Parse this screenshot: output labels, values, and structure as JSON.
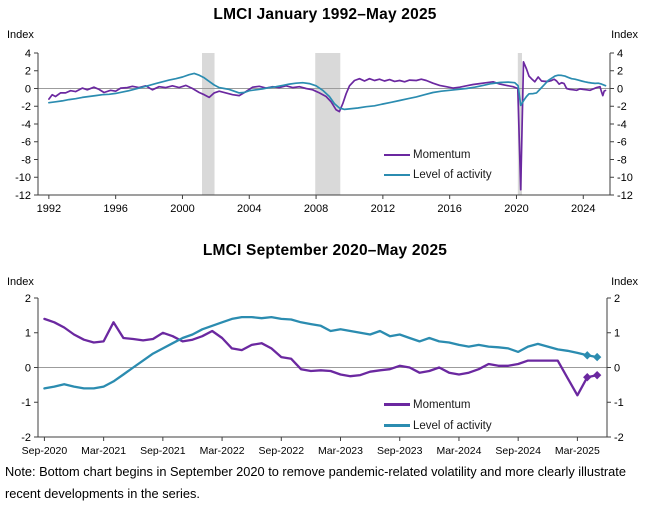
{
  "note": "Note: Bottom chart begins in September 2020 to remove pandemic-related volatility and more clearly illustrate recent developments in the series.",
  "chart_data": [
    {
      "type": "line",
      "title": "LMCI January 1992–May 2025",
      "ylabel_left": "Index",
      "ylabel_right": "Index",
      "ylim": [
        -12,
        4
      ],
      "yticks": [
        4,
        2,
        0,
        -2,
        -4,
        -6,
        -8,
        -10,
        -12
      ],
      "xlim": [
        1991.35,
        2025.6
      ],
      "xticks": [
        {
          "v": 1992,
          "label": "1992"
        },
        {
          "v": 1996,
          "label": "1996"
        },
        {
          "v": 2000,
          "label": "2000"
        },
        {
          "v": 2004,
          "label": "2004"
        },
        {
          "v": 2008,
          "label": "2008"
        },
        {
          "v": 2012,
          "label": "2012"
        },
        {
          "v": 2016,
          "label": "2016"
        },
        {
          "v": 2020,
          "label": "2020"
        },
        {
          "v": 2024,
          "label": "2024"
        }
      ],
      "grid": "zero-line-only",
      "legend_position": "inside-right",
      "band_color": "#d9d9d9",
      "bands": [
        [
          2001.17,
          2001.92
        ],
        [
          2007.95,
          2009.45
        ],
        [
          2020.08,
          2020.33
        ]
      ],
      "series": [
        {
          "name": "Momentum",
          "color": "#6b28a0",
          "points": [
            [
              1992.0,
              -1.2
            ],
            [
              1992.2,
              -0.7
            ],
            [
              1992.4,
              -0.9
            ],
            [
              1992.7,
              -0.5
            ],
            [
              1993.0,
              -0.5
            ],
            [
              1993.3,
              -0.25
            ],
            [
              1993.6,
              -0.35
            ],
            [
              1994.0,
              0.05
            ],
            [
              1994.3,
              -0.15
            ],
            [
              1994.7,
              0.15
            ],
            [
              1995.0,
              -0.1
            ],
            [
              1995.3,
              -0.45
            ],
            [
              1995.7,
              -0.2
            ],
            [
              1996.0,
              -0.3
            ],
            [
              1996.3,
              0.05
            ],
            [
              1996.7,
              0.1
            ],
            [
              1997.0,
              0.25
            ],
            [
              1997.4,
              0.1
            ],
            [
              1997.8,
              0.3
            ],
            [
              1998.2,
              -0.15
            ],
            [
              1998.6,
              0.2
            ],
            [
              1999.0,
              0.1
            ],
            [
              1999.4,
              0.3
            ],
            [
              1999.8,
              0.1
            ],
            [
              2000.2,
              0.35
            ],
            [
              2000.6,
              0.0
            ],
            [
              2001.0,
              -0.45
            ],
            [
              2001.3,
              -0.7
            ],
            [
              2001.6,
              -1.0
            ],
            [
              2001.9,
              -0.5
            ],
            [
              2002.2,
              -0.3
            ],
            [
              2002.6,
              -0.5
            ],
            [
              2003.0,
              -0.7
            ],
            [
              2003.4,
              -0.8
            ],
            [
              2003.8,
              -0.35
            ],
            [
              2004.2,
              0.15
            ],
            [
              2004.6,
              0.25
            ],
            [
              2005.0,
              0.05
            ],
            [
              2005.4,
              0.2
            ],
            [
              2005.8,
              0.1
            ],
            [
              2006.2,
              0.3
            ],
            [
              2006.6,
              0.1
            ],
            [
              2007.0,
              0.2
            ],
            [
              2007.4,
              0.0
            ],
            [
              2007.8,
              -0.15
            ],
            [
              2008.2,
              -0.5
            ],
            [
              2008.6,
              -0.9
            ],
            [
              2008.9,
              -1.5
            ],
            [
              2009.2,
              -2.4
            ],
            [
              2009.4,
              -2.6
            ],
            [
              2009.6,
              -1.7
            ],
            [
              2009.8,
              -0.6
            ],
            [
              2010.0,
              0.3
            ],
            [
              2010.3,
              0.9
            ],
            [
              2010.6,
              1.1
            ],
            [
              2010.9,
              0.85
            ],
            [
              2011.2,
              1.1
            ],
            [
              2011.5,
              0.9
            ],
            [
              2011.8,
              1.05
            ],
            [
              2012.1,
              0.85
            ],
            [
              2012.4,
              1.0
            ],
            [
              2012.7,
              0.8
            ],
            [
              2013.0,
              0.9
            ],
            [
              2013.3,
              0.75
            ],
            [
              2013.6,
              0.95
            ],
            [
              2014.0,
              0.9
            ],
            [
              2014.3,
              1.05
            ],
            [
              2014.6,
              0.9
            ],
            [
              2015.0,
              0.6
            ],
            [
              2015.4,
              0.35
            ],
            [
              2015.8,
              0.2
            ],
            [
              2016.2,
              0.05
            ],
            [
              2016.6,
              0.15
            ],
            [
              2017.0,
              0.3
            ],
            [
              2017.4,
              0.45
            ],
            [
              2017.8,
              0.55
            ],
            [
              2018.2,
              0.65
            ],
            [
              2018.6,
              0.75
            ],
            [
              2019.0,
              0.5
            ],
            [
              2019.4,
              0.35
            ],
            [
              2019.8,
              0.2
            ],
            [
              2020.08,
              0.0
            ],
            [
              2020.25,
              -11.4
            ],
            [
              2020.42,
              3.0
            ],
            [
              2020.6,
              2.2
            ],
            [
              2020.75,
              1.4
            ],
            [
              2020.9,
              1.1
            ],
            [
              2021.1,
              0.75
            ],
            [
              2021.3,
              1.3
            ],
            [
              2021.5,
              0.85
            ],
            [
              2021.7,
              0.8
            ],
            [
              2021.9,
              0.8
            ],
            [
              2022.1,
              0.9
            ],
            [
              2022.25,
              1.05
            ],
            [
              2022.4,
              0.85
            ],
            [
              2022.55,
              0.5
            ],
            [
              2022.7,
              0.65
            ],
            [
              2022.85,
              0.55
            ],
            [
              2023.0,
              0.0
            ],
            [
              2023.2,
              -0.1
            ],
            [
              2023.4,
              -0.15
            ],
            [
              2023.6,
              -0.2
            ],
            [
              2023.8,
              -0.05
            ],
            [
              2024.0,
              -0.1
            ],
            [
              2024.2,
              -0.15
            ],
            [
              2024.4,
              -0.2
            ],
            [
              2024.6,
              -0.05
            ],
            [
              2024.8,
              0.1
            ],
            [
              2025.0,
              0.2
            ],
            [
              2025.08,
              -0.3
            ],
            [
              2025.17,
              -0.8
            ],
            [
              2025.25,
              -0.28
            ],
            [
              2025.33,
              -0.22
            ]
          ]
        },
        {
          "name": "Level of activity",
          "color": "#2b8cb0",
          "points": [
            [
              1992.0,
              -1.6
            ],
            [
              1992.4,
              -1.5
            ],
            [
              1992.8,
              -1.4
            ],
            [
              1993.2,
              -1.25
            ],
            [
              1993.6,
              -1.15
            ],
            [
              1994.0,
              -1.0
            ],
            [
              1994.4,
              -0.9
            ],
            [
              1994.8,
              -0.8
            ],
            [
              1995.2,
              -0.7
            ],
            [
              1995.6,
              -0.65
            ],
            [
              1996.0,
              -0.55
            ],
            [
              1996.4,
              -0.4
            ],
            [
              1996.8,
              -0.25
            ],
            [
              1997.2,
              -0.05
            ],
            [
              1997.6,
              0.15
            ],
            [
              1998.0,
              0.35
            ],
            [
              1998.4,
              0.55
            ],
            [
              1998.8,
              0.75
            ],
            [
              1999.2,
              0.95
            ],
            [
              1999.6,
              1.1
            ],
            [
              2000.0,
              1.3
            ],
            [
              2000.4,
              1.55
            ],
            [
              2000.7,
              1.7
            ],
            [
              2001.0,
              1.5
            ],
            [
              2001.3,
              1.2
            ],
            [
              2001.6,
              0.8
            ],
            [
              2001.9,
              0.4
            ],
            [
              2002.2,
              0.1
            ],
            [
              2002.5,
              0.0
            ],
            [
              2002.8,
              -0.1
            ],
            [
              2003.1,
              -0.3
            ],
            [
              2003.4,
              -0.5
            ],
            [
              2003.7,
              -0.45
            ],
            [
              2004.0,
              -0.25
            ],
            [
              2004.4,
              -0.15
            ],
            [
              2004.8,
              -0.05
            ],
            [
              2005.2,
              0.1
            ],
            [
              2005.6,
              0.2
            ],
            [
              2006.0,
              0.35
            ],
            [
              2006.4,
              0.5
            ],
            [
              2006.8,
              0.6
            ],
            [
              2007.2,
              0.65
            ],
            [
              2007.6,
              0.55
            ],
            [
              2008.0,
              0.3
            ],
            [
              2008.4,
              -0.2
            ],
            [
              2008.8,
              -0.9
            ],
            [
              2009.1,
              -1.7
            ],
            [
              2009.4,
              -2.2
            ],
            [
              2009.7,
              -2.35
            ],
            [
              2010.0,
              -2.3
            ],
            [
              2010.5,
              -2.2
            ],
            [
              2011.0,
              -2.05
            ],
            [
              2011.5,
              -1.95
            ],
            [
              2012.0,
              -1.75
            ],
            [
              2012.5,
              -1.55
            ],
            [
              2013.0,
              -1.35
            ],
            [
              2013.5,
              -1.15
            ],
            [
              2014.0,
              -0.95
            ],
            [
              2014.5,
              -0.7
            ],
            [
              2015.0,
              -0.45
            ],
            [
              2015.5,
              -0.3
            ],
            [
              2016.0,
              -0.2
            ],
            [
              2016.5,
              -0.1
            ],
            [
              2017.0,
              0.0
            ],
            [
              2017.5,
              0.15
            ],
            [
              2018.0,
              0.35
            ],
            [
              2018.5,
              0.55
            ],
            [
              2019.0,
              0.68
            ],
            [
              2019.5,
              0.72
            ],
            [
              2019.9,
              0.65
            ],
            [
              2020.1,
              0.3
            ],
            [
              2020.25,
              -1.9
            ],
            [
              2020.45,
              -1.3
            ],
            [
              2020.6,
              -0.9
            ],
            [
              2020.75,
              -0.6
            ],
            [
              2021.0,
              -0.58
            ],
            [
              2021.2,
              -0.5
            ],
            [
              2021.45,
              0.0
            ],
            [
              2021.7,
              0.5
            ],
            [
              2021.9,
              0.9
            ],
            [
              2022.1,
              1.15
            ],
            [
              2022.3,
              1.4
            ],
            [
              2022.5,
              1.5
            ],
            [
              2022.7,
              1.48
            ],
            [
              2022.9,
              1.4
            ],
            [
              2023.1,
              1.25
            ],
            [
              2023.3,
              1.1
            ],
            [
              2023.5,
              1.05
            ],
            [
              2023.7,
              0.95
            ],
            [
              2023.9,
              0.85
            ],
            [
              2024.1,
              0.75
            ],
            [
              2024.3,
              0.68
            ],
            [
              2024.5,
              0.62
            ],
            [
              2024.7,
              0.58
            ],
            [
              2024.9,
              0.6
            ],
            [
              2025.1,
              0.5
            ],
            [
              2025.33,
              0.32
            ]
          ]
        }
      ]
    },
    {
      "type": "line",
      "title": "LMCI September 2020–May 2025",
      "ylabel_left": "Index",
      "ylabel_right": "Index",
      "ylim": [
        -2,
        2
      ],
      "yticks": [
        2,
        1,
        0,
        -1,
        -2
      ],
      "xlim": [
        -0.65,
        57.0
      ],
      "xticks": [
        {
          "v": 0,
          "label": "Sep-2020"
        },
        {
          "v": 6,
          "label": "Mar-2021"
        },
        {
          "v": 12,
          "label": "Sep-2021"
        },
        {
          "v": 18,
          "label": "Mar-2022"
        },
        {
          "v": 24,
          "label": "Sep-2022"
        },
        {
          "v": 30,
          "label": "Mar-2023"
        },
        {
          "v": 36,
          "label": "Sep-2023"
        },
        {
          "v": 42,
          "label": "Mar-2024"
        },
        {
          "v": 48,
          "label": "Sep-2024"
        },
        {
          "v": 54,
          "label": "Mar-2025"
        }
      ],
      "grid": "zero-line-only",
      "legend_position": "inside-right",
      "x_unit": "month-index-from-Sep-2020",
      "series": [
        {
          "name": "Momentum",
          "color": "#6b28a0",
          "diamond_last": 2,
          "values": [
            1.4,
            1.3,
            1.15,
            0.95,
            0.8,
            0.72,
            0.75,
            1.3,
            0.85,
            0.82,
            0.78,
            0.82,
            1.0,
            0.9,
            0.75,
            0.8,
            0.9,
            1.05,
            0.85,
            0.55,
            0.5,
            0.65,
            0.7,
            0.55,
            0.3,
            0.25,
            -0.05,
            -0.1,
            -0.08,
            -0.1,
            -0.2,
            -0.25,
            -0.22,
            -0.12,
            -0.08,
            -0.05,
            0.05,
            0.0,
            -0.15,
            -0.1,
            0.0,
            -0.15,
            -0.2,
            -0.15,
            -0.05,
            0.1,
            0.05,
            0.05,
            0.1,
            0.2,
            0.2,
            0.2,
            0.2,
            -0.3,
            -0.8,
            -0.28,
            -0.22
          ]
        },
        {
          "name": "Level of activity",
          "color": "#2b8cb0",
          "diamond_last": 2,
          "values": [
            -0.6,
            -0.55,
            -0.48,
            -0.55,
            -0.6,
            -0.6,
            -0.55,
            -0.4,
            -0.2,
            0.0,
            0.2,
            0.4,
            0.55,
            0.7,
            0.85,
            0.95,
            1.1,
            1.2,
            1.3,
            1.4,
            1.45,
            1.45,
            1.42,
            1.45,
            1.4,
            1.38,
            1.3,
            1.25,
            1.2,
            1.05,
            1.1,
            1.05,
            1.0,
            0.95,
            1.05,
            0.9,
            0.95,
            0.85,
            0.75,
            0.85,
            0.75,
            0.72,
            0.65,
            0.6,
            0.65,
            0.6,
            0.58,
            0.55,
            0.45,
            0.6,
            0.68,
            0.6,
            0.52,
            0.48,
            0.42,
            0.35,
            0.3
          ]
        }
      ]
    }
  ]
}
